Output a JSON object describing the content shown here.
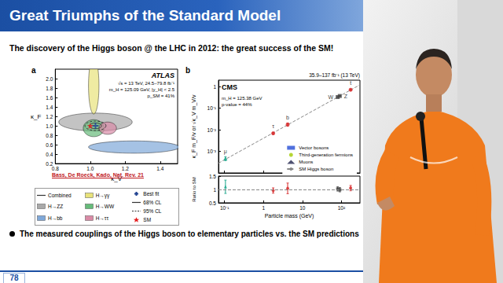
{
  "slide": {
    "title": "Great Triumphs of the Standard Model",
    "subtitle": "The discovery of the Higgs boson @ the LHC in 2012: the great success of the SM!",
    "bullet": "The measured couplings of the Higgs boson to elementary particles vs. the SM predictions",
    "page_number": "78"
  },
  "chart_data": [
    {
      "type": "contour",
      "panel_label": "a",
      "title": "ATLAS",
      "annotations": [
        "√s = 13 TeV, 24.5–79.8 fb⁻¹",
        "m_H = 125.09 GeV, |y_H| < 2.5",
        "p_SM = 41%"
      ],
      "citation": "Bass, De Roeck, Kado, Nat. Rev. 21",
      "x_label": "κ_V",
      "y_label": "κ_F",
      "xlim": [
        0.8,
        1.5
      ],
      "xticks": [
        0.8,
        {
          "value": 1,
          "label": "1.0"
        },
        1.2,
        1.4
      ],
      "ylim": [
        0.2,
        2.2
      ],
      "yticks": [
        0.2,
        0.4,
        0.6,
        0.8,
        {
          "value": 1,
          "label": "1.0"
        },
        1.2,
        1.4,
        1.6,
        1.8,
        {
          "value": 2,
          "label": "2.0"
        }
      ],
      "grid": false,
      "legend": "bottom",
      "levels": [
        {
          "name": "68% CL",
          "line_style": "solid"
        },
        {
          "name": "95% CL",
          "line_style": "dashed"
        }
      ],
      "points": [
        {
          "name": "Best fit",
          "marker": "plus",
          "color": "#1d3f8f",
          "x": 1.03,
          "y": 1.0
        },
        {
          "name": "SM",
          "marker": "star",
          "color": "#e41a1c",
          "x": 1,
          "y": 1
        }
      ],
      "series": [
        {
          "name": "Combined",
          "color": "#333333",
          "center": [
            1.03,
            1.0
          ],
          "contours": [
            {
              "level": "68% CL",
              "rx": 0.035,
              "ry": 0.06
            },
            {
              "level": "95% CL",
              "rx": 0.06,
              "ry": 0.1
            }
          ]
        },
        {
          "name": "H→ZZ",
          "color": "#a9a9a9",
          "center": [
            1.03,
            1.08
          ],
          "contours": [
            {
              "level": "68% CL",
              "rx": 0.21,
              "ry": 0.19
            }
          ]
        },
        {
          "name": "H→bb",
          "color": "#7fa8d9",
          "center": [
            1.25,
            0.55
          ],
          "contours": [
            {
              "level": "68% CL",
              "rx": 0.26,
              "ry": 0.13
            }
          ]
        },
        {
          "name": "H→γγ",
          "color": "#e8e27a",
          "center": [
            1.02,
            1.85
          ],
          "contours": [
            {
              "level": "68% CL",
              "rx": 0.03,
              "ry": 0.6
            }
          ]
        },
        {
          "name": "H→WW",
          "color": "#66bb7a",
          "center": [
            1.02,
            0.95
          ],
          "contours": [
            {
              "level": "68% CL",
              "rx": 0.06,
              "ry": 0.18
            }
          ]
        },
        {
          "name": "H→ττ",
          "color": "#d98aa6",
          "center": [
            1.1,
            0.95
          ],
          "contours": [
            {
              "level": "68% CL",
              "rx": 0.05,
              "ry": 0.13
            }
          ]
        }
      ]
    },
    {
      "type": "scatter",
      "panel_label": "b",
      "title": "CMS",
      "subtitle": "35.9–137 fb⁻¹ (13 TeV)",
      "annotations": [
        "m_H = 125.38 GeV",
        "p-value = 44%"
      ],
      "x_label": "Particle mass (GeV)",
      "y_label": "κ_F m_F/v or √κ_V m_V/v",
      "ratio_label": "Ratio to SM",
      "log": true,
      "grid": false,
      "legend": "lower right",
      "xlim": [
        0.07,
        300
      ],
      "xticks": [
        {
          "value": 0.1,
          "label": "10⁻¹"
        },
        1,
        10,
        {
          "value": 100,
          "label": "10²"
        }
      ],
      "ylim": [
        0.0001,
        2
      ],
      "yticks": [
        {
          "value": 0.001,
          "label": "10⁻³"
        },
        {
          "value": 0.01,
          "label": "10⁻²"
        },
        {
          "value": 0.1,
          "label": "10⁻¹"
        },
        1
      ],
      "ratio_ylim": [
        0.5,
        1.5
      ],
      "ratio_yticks": [
        0.5,
        1,
        1.5
      ],
      "ratio_reference": 1,
      "series": [
        {
          "name": "Vector bosons",
          "color": "#444444",
          "marker": "square",
          "x": [
            80.4,
            91.2
          ],
          "values": [
            0.33,
            0.37
          ],
          "errors": [
            0.012,
            0.012
          ],
          "ratio": [
            1.02,
            0.99
          ],
          "ratio_errors": [
            0.08,
            0.08
          ],
          "point_labels": [
            "W",
            "Z"
          ]
        },
        {
          "name": "Third-generation fermions",
          "color": "#d62728",
          "marker": "circle",
          "x": [
            1.777,
            4.18,
            172.8
          ],
          "values": [
            0.0069,
            0.0176,
            0.72
          ],
          "errors": [
            0.0007,
            0.003,
            0.06
          ],
          "ratio": [
            0.96,
            1.04,
            1.05
          ],
          "ratio_errors": [
            0.1,
            0.2,
            0.1
          ],
          "point_labels": [
            "τ",
            "b",
            "t"
          ]
        },
        {
          "name": "Muons",
          "color": "#17a589",
          "marker": "triangle",
          "x": [
            0.1057
          ],
          "values": [
            0.00047
          ],
          "errors": [
            0.0001
          ],
          "ratio": [
            1.1
          ],
          "ratio_errors": [
            0.25
          ],
          "point_labels": [
            "μ"
          ]
        },
        {
          "name": "SM Higgs boson",
          "type": "line",
          "line_style": "dashed",
          "color": "#888888",
          "x": [
            0.07,
            300
          ],
          "values": [
            0.000285,
            1.22
          ]
        }
      ]
    }
  ]
}
